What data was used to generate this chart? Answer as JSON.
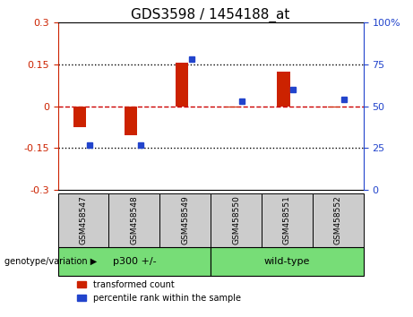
{
  "title": "GDS3598 / 1454188_at",
  "samples": [
    "GSM458547",
    "GSM458548",
    "GSM458549",
    "GSM458550",
    "GSM458551",
    "GSM458552"
  ],
  "transformed_count": [
    -0.075,
    -0.105,
    0.155,
    -0.005,
    0.125,
    -0.005
  ],
  "percentile_rank": [
    27,
    27,
    78,
    53,
    60,
    54
  ],
  "ylim_left": [
    -0.3,
    0.3
  ],
  "ylim_right": [
    0,
    100
  ],
  "yticks_left": [
    -0.3,
    -0.15,
    0,
    0.15,
    0.3
  ],
  "yticks_right": [
    0,
    25,
    50,
    75,
    100
  ],
  "bar_color_red": "#cc2200",
  "bar_color_blue": "#2244cc",
  "dotted_line_color": "#000000",
  "zero_line_color": "#cc0000",
  "bg_color": "#ffffff",
  "plot_bg_color": "#ffffff",
  "tick_label_bg": "#cccccc",
  "legend_red_label": "transformed count",
  "legend_blue_label": "percentile rank within the sample",
  "genotype_label": "genotype/variation",
  "group1_label": "p300 +/-",
  "group2_label": "wild-type",
  "group_color": "#77dd77"
}
